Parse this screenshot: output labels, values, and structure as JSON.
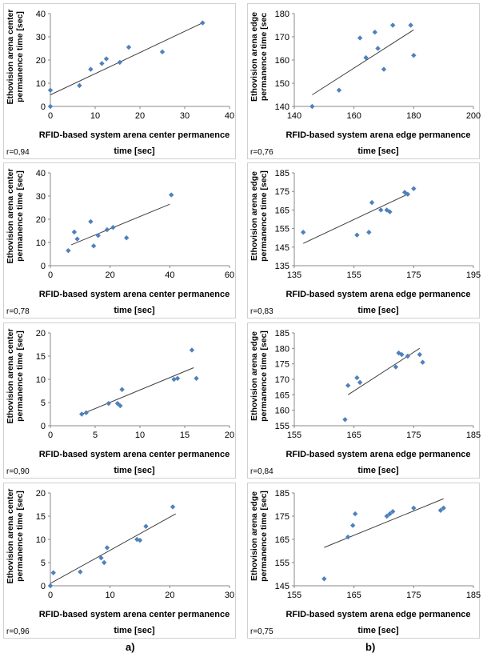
{
  "colors": {
    "marker": "#4f81bd",
    "trend": "#404040",
    "axis": "#888888",
    "grid": "#d9d9d9"
  },
  "column_labels": [
    "a)",
    "b)"
  ],
  "chart_data": [
    {
      "type": "scatter",
      "panel": "a1",
      "ylabel": "Ethovision arena center\npermanence time [sec]",
      "xlabel": "RFID-based system arena center permanence time [sec]",
      "r_label": "r=0,94",
      "xlim": [
        0,
        40
      ],
      "ylim": [
        0,
        40
      ],
      "xticks": [
        0,
        10,
        20,
        30,
        40
      ],
      "yticks": [
        0,
        10,
        20,
        30,
        40
      ],
      "trend": [
        [
          0,
          5
        ],
        [
          34,
          36
        ]
      ],
      "points": [
        [
          0,
          0
        ],
        [
          0,
          7
        ],
        [
          6.5,
          9
        ],
        [
          9,
          16
        ],
        [
          11.5,
          18.5
        ],
        [
          12.5,
          20.5
        ],
        [
          15.5,
          19
        ],
        [
          17.5,
          25.5
        ],
        [
          25,
          23.5
        ],
        [
          34,
          36
        ]
      ]
    },
    {
      "type": "scatter",
      "panel": "b1",
      "ylabel": "Ethovision arena edge\npermanence time [sec",
      "xlabel": "RFID-based system arena edge permanence time [sec]",
      "r_label": "r=0,76",
      "xlim": [
        140,
        200
      ],
      "ylim": [
        140,
        180
      ],
      "xticks": [
        140,
        160,
        180,
        200
      ],
      "yticks": [
        140,
        150,
        160,
        170,
        180
      ],
      "trend": [
        [
          146,
          145
        ],
        [
          180,
          173
        ]
      ],
      "points": [
        [
          146,
          140
        ],
        [
          155,
          147
        ],
        [
          162,
          169.5
        ],
        [
          164,
          161
        ],
        [
          167,
          172
        ],
        [
          168,
          165
        ],
        [
          170,
          156
        ],
        [
          173,
          175
        ],
        [
          179,
          175
        ],
        [
          180,
          162
        ]
      ]
    },
    {
      "type": "scatter",
      "panel": "a2",
      "ylabel": "Ethovision arena center\npermanence time [sec]",
      "xlabel": "RFID-based system arena center permanence time [sec]",
      "r_label": "r=0,78",
      "xlim": [
        0,
        60
      ],
      "ylim": [
        0,
        40
      ],
      "xticks": [
        0,
        20,
        40,
        60
      ],
      "yticks": [
        0,
        10,
        20,
        30,
        40
      ],
      "trend": [
        [
          7,
          9
        ],
        [
          40,
          26.5
        ]
      ],
      "points": [
        [
          6,
          6.5
        ],
        [
          8,
          14.5
        ],
        [
          9,
          11.5
        ],
        [
          13.5,
          19
        ],
        [
          14.5,
          8.5
        ],
        [
          16,
          13
        ],
        [
          19,
          15.5
        ],
        [
          21,
          16.5
        ],
        [
          25.5,
          12
        ],
        [
          40.5,
          30.5
        ]
      ]
    },
    {
      "type": "scatter",
      "panel": "b2",
      "ylabel": "Ethovision arena edge\npermanence time [sec]",
      "xlabel": "RFID-based system arena edge permanence time [sec]",
      "r_label": "r=0,83",
      "xlim": [
        135,
        195
      ],
      "ylim": [
        135,
        185
      ],
      "xticks": [
        135,
        155,
        175,
        195
      ],
      "yticks": [
        135,
        145,
        155,
        165,
        175,
        185
      ],
      "trend": [
        [
          138,
          147
        ],
        [
          173,
          173.5
        ]
      ],
      "points": [
        [
          138,
          153
        ],
        [
          156,
          151.5
        ],
        [
          160,
          153
        ],
        [
          161,
          169
        ],
        [
          164,
          165
        ],
        [
          166,
          165
        ],
        [
          167,
          164
        ],
        [
          172,
          174.5
        ],
        [
          173,
          173.5
        ],
        [
          175,
          176.5
        ]
      ]
    },
    {
      "type": "scatter",
      "panel": "a3",
      "ylabel": "Ethovision arena center\npermanence time [sec]",
      "xlabel": "RFID-based system arena center permanence time [sec]",
      "r_label": "r=0,90",
      "xlim": [
        0,
        20
      ],
      "ylim": [
        0,
        20
      ],
      "xticks": [
        0,
        5,
        10,
        15,
        20
      ],
      "yticks": [
        0,
        5,
        10,
        15,
        20
      ],
      "trend": [
        [
          3.5,
          2.5
        ],
        [
          16,
          12.5
        ]
      ],
      "points": [
        [
          3.5,
          2.5
        ],
        [
          4,
          2.8
        ],
        [
          6.5,
          4.8
        ],
        [
          7.5,
          4.8
        ],
        [
          7.8,
          4.3
        ],
        [
          8,
          7.8
        ],
        [
          13.8,
          10
        ],
        [
          14.2,
          10.2
        ],
        [
          15.8,
          16.3
        ],
        [
          16.3,
          10.2
        ]
      ]
    },
    {
      "type": "scatter",
      "panel": "b3",
      "ylabel": "Ethovision arena edge\npermanence time [sec]",
      "xlabel": "RFID-based system arena edge permanence time [sec]",
      "r_label": "r=0,84",
      "xlim": [
        155,
        185
      ],
      "ylim": [
        155,
        185
      ],
      "xticks": [
        155,
        165,
        175,
        185
      ],
      "yticks": [
        155,
        160,
        165,
        170,
        175,
        180,
        185
      ],
      "trend": [
        [
          164,
          165
        ],
        [
          176,
          180
        ]
      ],
      "points": [
        [
          163.5,
          157
        ],
        [
          164,
          168
        ],
        [
          165.5,
          170.5
        ],
        [
          166,
          169
        ],
        [
          172,
          174
        ],
        [
          172.5,
          178.5
        ],
        [
          173,
          178
        ],
        [
          174,
          177.5
        ],
        [
          176,
          178
        ],
        [
          176.5,
          175.5
        ]
      ]
    },
    {
      "type": "scatter",
      "panel": "a4",
      "ylabel": "Ethovision arena center\npermanence time [sec]",
      "xlabel": "RFID-based system arena center permanence time [sec]",
      "r_label": "r=0,96",
      "xlim": [
        0,
        30
      ],
      "ylim": [
        0,
        20
      ],
      "xticks": [
        0,
        10,
        20,
        30
      ],
      "yticks": [
        0,
        5,
        10,
        15,
        20
      ],
      "trend": [
        [
          0,
          0.5
        ],
        [
          21,
          15.5
        ]
      ],
      "points": [
        [
          0,
          0
        ],
        [
          0.5,
          2.8
        ],
        [
          5,
          3
        ],
        [
          8.5,
          6
        ],
        [
          9,
          5
        ],
        [
          9.5,
          8.2
        ],
        [
          14.5,
          10
        ],
        [
          15,
          9.8
        ],
        [
          16,
          12.8
        ],
        [
          20.5,
          17
        ]
      ]
    },
    {
      "type": "scatter",
      "panel": "b4",
      "ylabel": "Ethovision arena edge\npermanence time [sec]",
      "xlabel": "RFID-based system arena edge permanence time [sec]",
      "r_label": "r=0,75",
      "xlim": [
        155,
        185
      ],
      "ylim": [
        145,
        185
      ],
      "xticks": [
        155,
        165,
        175,
        185
      ],
      "yticks": [
        145,
        155,
        165,
        175,
        185
      ],
      "trend": [
        [
          160,
          161.5
        ],
        [
          180,
          182.5
        ]
      ],
      "points": [
        [
          160,
          148
        ],
        [
          164,
          166
        ],
        [
          164.8,
          171
        ],
        [
          165.2,
          176
        ],
        [
          170.5,
          175
        ],
        [
          171,
          176
        ],
        [
          171.5,
          177
        ],
        [
          175,
          178.5
        ],
        [
          179.5,
          177.5
        ],
        [
          180,
          178.5
        ]
      ]
    }
  ]
}
